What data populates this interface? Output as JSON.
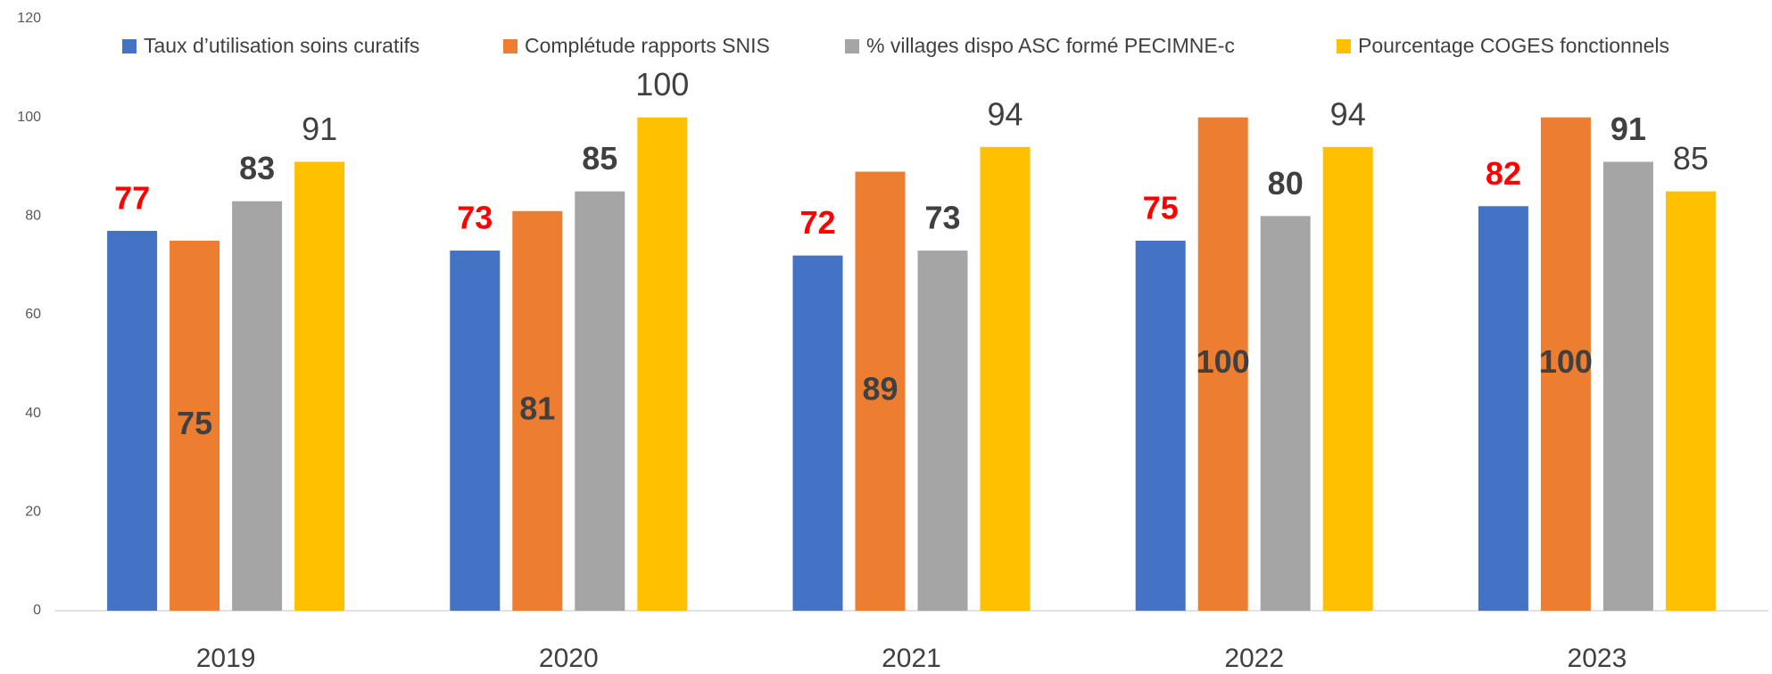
{
  "chart_data": {
    "type": "bar",
    "categories": [
      "2019",
      "2020",
      "2021",
      "2022",
      "2023"
    ],
    "series": [
      {
        "name": "Taux d’utilisation soins curatifs",
        "color": "#4472c4",
        "values": [
          77,
          73,
          72,
          75,
          82
        ]
      },
      {
        "name": "Complétude rapports SNIS",
        "color": "#ed7d31",
        "values": [
          75,
          81,
          89,
          100,
          100
        ]
      },
      {
        "name": "% villages dispo ASC formé PECIMNE-c",
        "color": "#a5a5a5",
        "values": [
          83,
          85,
          73,
          80,
          91
        ]
      },
      {
        "name": "Pourcentage COGES fonctionnels",
        "color": "#ffc000",
        "values": [
          91,
          100,
          94,
          94,
          85
        ]
      }
    ],
    "ylim": [
      0,
      120
    ],
    "yticks": [
      0,
      20,
      40,
      60,
      80,
      100,
      120
    ],
    "grid": false
  }
}
